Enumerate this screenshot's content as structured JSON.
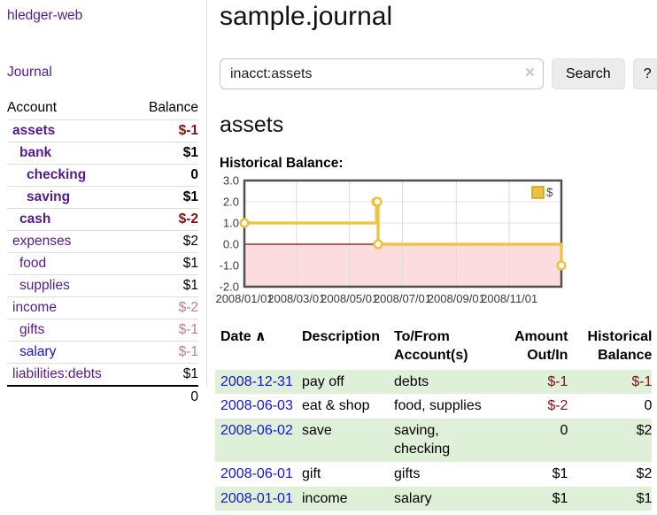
{
  "app": {
    "brand": "hledger-web"
  },
  "nav": {
    "journal_label": "Journal"
  },
  "colors": {
    "accent_purple": "#551a8b",
    "link_blue": "#1414d6",
    "negative_strong": "#7f1212",
    "negative_soft": "#c08080",
    "row_stripe_green": "#dff0d8",
    "chart_line": "#edc240",
    "chart_negative_fill": "#fcdcdc",
    "chart_zero_line": "#8f0606"
  },
  "sidebar": {
    "accounts_table": {
      "col_account": "Account",
      "col_balance": "Balance",
      "rows": [
        {
          "name": "assets",
          "balance": "$-1",
          "level": 1,
          "bold": true,
          "tone": "strong"
        },
        {
          "name": "bank",
          "balance": "$1",
          "level": 2,
          "bold": true,
          "tone": "none"
        },
        {
          "name": "checking",
          "balance": "0",
          "level": 3,
          "bold": true,
          "tone": "none"
        },
        {
          "name": "saving",
          "balance": "$1",
          "level": 3,
          "bold": true,
          "tone": "none"
        },
        {
          "name": "cash",
          "balance": "$-2",
          "level": 2,
          "bold": true,
          "tone": "strong"
        },
        {
          "name": "expenses",
          "balance": "$2",
          "level": 1,
          "bold": false,
          "tone": "none"
        },
        {
          "name": "food",
          "balance": "$1",
          "level": 2,
          "bold": false,
          "tone": "none"
        },
        {
          "name": "supplies",
          "balance": "$1",
          "level": 2,
          "bold": false,
          "tone": "none"
        },
        {
          "name": "income",
          "balance": "$-2",
          "level": 1,
          "bold": false,
          "tone": "soft"
        },
        {
          "name": "gifts",
          "balance": "$-1",
          "level": 2,
          "bold": false,
          "tone": "soft"
        },
        {
          "name": "salary",
          "balance": "$-1",
          "level": 2,
          "bold": false,
          "tone": "soft",
          "variant": "blue"
        },
        {
          "name": "liabilities:debts",
          "balance": "$1",
          "level": 1,
          "bold": false,
          "tone": "none"
        }
      ],
      "total": "0"
    }
  },
  "header": {
    "title": "sample.journal"
  },
  "search": {
    "value": "inacct:assets",
    "clear_icon": "×",
    "button_label": "Search",
    "help_label": "?"
  },
  "account_page": {
    "title": "assets",
    "chart_label": "Historical Balance:"
  },
  "chart_data": {
    "type": "line",
    "step": true,
    "title": "Historical Balance",
    "series": [
      {
        "name": "$",
        "color": "#edc240",
        "points": [
          [
            "2008-01-01",
            1
          ],
          [
            "2008-06-01",
            2
          ],
          [
            "2008-06-02",
            2
          ],
          [
            "2008-06-03",
            0
          ],
          [
            "2008-12-31",
            -1
          ]
        ]
      }
    ],
    "x_range": [
      "2008-01-01",
      "2008-12-31"
    ],
    "x_ticks": [
      "2008/01/01",
      "2008/03/01",
      "2008/05/01",
      "2008/07/01",
      "2008/09/01",
      "2008/11/01"
    ],
    "ylim": [
      -2,
      3
    ],
    "y_ticks": [
      "3.0",
      "2.0",
      "1.0",
      "0.0",
      "-1.0",
      "-2.0"
    ],
    "grid": true,
    "legend_position": "top-right",
    "negative_region_color": "#fcdcdc",
    "zero_line_color": "#8f0606"
  },
  "register": {
    "columns": [
      {
        "label": "Date",
        "sort_icon": "∧"
      },
      {
        "label": "Description"
      },
      {
        "label": "To/From Account(s)"
      },
      {
        "label": "Amount Out/In"
      },
      {
        "label": "Historical Balance"
      }
    ],
    "rows": [
      {
        "date": "2008-12-31",
        "description": "pay off",
        "accounts": [
          "debts"
        ],
        "amount": "$-1",
        "balance": "$-1"
      },
      {
        "date": "2008-06-03",
        "description": "eat & shop",
        "accounts": [
          "food, supplies"
        ],
        "amount": "$-2",
        "balance": "0"
      },
      {
        "date": "2008-06-02",
        "description": "save",
        "accounts": [
          "saving,",
          "checking"
        ],
        "amount": "0",
        "balance": "$2"
      },
      {
        "date": "2008-06-01",
        "description": "gift",
        "accounts": [
          "gifts"
        ],
        "amount": "$1",
        "balance": "$2"
      },
      {
        "date": "2008-01-01",
        "description": "income",
        "accounts": [
          "salary"
        ],
        "amount": "$1",
        "balance": "$1"
      }
    ]
  }
}
